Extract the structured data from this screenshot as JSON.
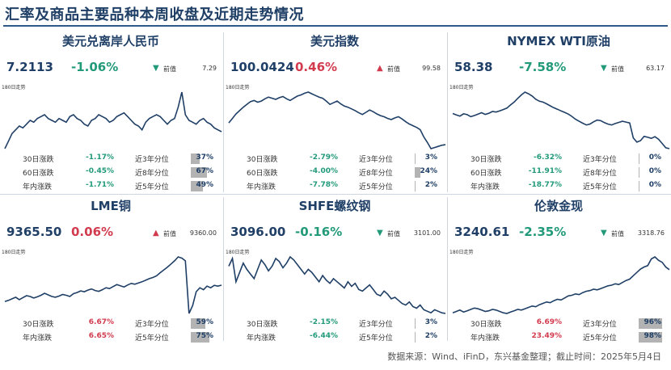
{
  "title": "汇率及商品主要品种本周收盘及近期走势情况",
  "source": "数据来源：Wind、iFinD，东兴基金整理；截止时间：2025年5月4日",
  "colors": {
    "down": "#229a7a",
    "up": "#d23b4e",
    "line": "#1f3f66",
    "bar": "#b3b3b3"
  },
  "panels": [
    {
      "name": "美元兑离岸人民币",
      "price": "7.2113",
      "change": "-1.06%",
      "direction": "down",
      "arrow": "▼",
      "prev_label": "前值",
      "prev_value": "7.29",
      "spark_label": "180日走势",
      "stats": [
        {
          "label": "30日涨跌",
          "value": "-1.17%",
          "dir": "down",
          "plabel": "近3年分位",
          "pct": "37%",
          "pct_value": 37
        },
        {
          "label": "60日涨跌",
          "value": "-0.45%",
          "dir": "down",
          "plabel": "近8年分位",
          "pct": "67%",
          "pct_value": 67
        },
        {
          "label": "年内涨跌",
          "value": "-1.71%",
          "dir": "down",
          "plabel": "近5年分位",
          "pct": "49%",
          "pct_value": 49
        }
      ]
    },
    {
      "name": "美元指数",
      "price": "100.0424",
      "change": "0.46%",
      "direction": "up",
      "arrow": "▲",
      "prev_label": "前值",
      "prev_value": "99.58",
      "spark_label": "180日走势",
      "stats": [
        {
          "label": "30日涨跌",
          "value": "-2.79%",
          "dir": "down",
          "plabel": "近3年分位",
          "pct": "3%",
          "pct_value": 3
        },
        {
          "label": "60日涨跌",
          "value": "-4.00%",
          "dir": "down",
          "plabel": "近8年分位",
          "pct": "24%",
          "pct_value": 24
        },
        {
          "label": "年内涨跌",
          "value": "-7.78%",
          "dir": "down",
          "plabel": "近5年分位",
          "pct": "2%",
          "pct_value": 2
        }
      ]
    },
    {
      "name": "NYMEX WTI原油",
      "price": "58.38",
      "change": "-7.58%",
      "direction": "down",
      "arrow": "▼",
      "prev_label": "前值",
      "prev_value": "63.17",
      "spark_label": "180日走势",
      "stats": [
        {
          "label": "30日涨跌",
          "value": "-6.32%",
          "dir": "down",
          "plabel": "近3年分位",
          "pct": "0%",
          "pct_value": 0
        },
        {
          "label": "60日涨跌",
          "value": "-11.91%",
          "dir": "down",
          "plabel": "近8年分位",
          "pct": "0%",
          "pct_value": 0
        },
        {
          "label": "年内涨跌",
          "value": "-18.77%",
          "dir": "down",
          "plabel": "近5年分位",
          "pct": "0%",
          "pct_value": 0
        }
      ]
    },
    {
      "name": "LME铜",
      "price": "9365.50",
      "change": "0.06%",
      "direction": "up",
      "arrow": "▲",
      "prev_label": "前值",
      "prev_value": "9360.00",
      "spark_label": "180日走势",
      "stats": [
        {
          "label": "30日涨跌",
          "value": "6.67%",
          "dir": "up",
          "plabel": "近3年分位",
          "pct": "59%",
          "pct_value": 59
        },
        {
          "label": "年内涨跌",
          "value": "6.65%",
          "dir": "up",
          "plabel": "近5年分位",
          "pct": "75%",
          "pct_value": 75
        }
      ]
    },
    {
      "name": "SHFE螺纹钢",
      "price": "3096.00",
      "change": "-0.16%",
      "direction": "down",
      "arrow": "▼",
      "prev_label": "前值",
      "prev_value": "3101.00",
      "spark_label": "180日走势",
      "stats": [
        {
          "label": "30日涨跌",
          "value": "-2.15%",
          "dir": "down",
          "plabel": "近3年分位",
          "pct": "3%",
          "pct_value": 3
        },
        {
          "label": "年内涨跌",
          "value": "-6.44%",
          "dir": "down",
          "plabel": "近5年分位",
          "pct": "2%",
          "pct_value": 2
        }
      ]
    },
    {
      "name": "伦敦金现",
      "price": "3240.61",
      "change": "-2.35%",
      "direction": "down",
      "arrow": "▼",
      "prev_label": "前值",
      "prev_value": "3318.76",
      "spark_label": "180日走势",
      "stats": [
        {
          "label": "30日涨跌",
          "value": "6.69%",
          "dir": "up",
          "plabel": "近3年分位",
          "pct": "96%",
          "pct_value": 96
        },
        {
          "label": "年内涨跌",
          "value": "23.49%",
          "dir": "up",
          "plabel": "近5年分位",
          "pct": "98%",
          "pct_value": 98
        }
      ]
    }
  ],
  "chart_data": [
    {
      "type": "line",
      "series": [
        {
          "values": [
            7.12,
            7.16,
            7.2,
            7.22,
            7.24,
            7.23,
            7.25,
            7.27,
            7.26,
            7.28,
            7.29,
            7.3,
            7.28,
            7.27,
            7.26,
            7.28,
            7.27,
            7.26,
            7.29,
            7.3,
            7.28,
            7.27,
            7.25,
            7.24,
            7.27,
            7.28,
            7.3,
            7.29,
            7.28,
            7.26,
            7.27,
            7.29,
            7.3,
            7.31,
            7.29,
            7.27,
            7.25,
            7.24,
            7.22,
            7.26,
            7.28,
            7.29,
            7.3,
            7.29,
            7.27,
            7.25,
            7.27,
            7.28,
            7.34,
            7.42,
            7.3,
            7.27,
            7.26,
            7.25,
            7.27,
            7.28,
            7.26,
            7.25,
            7.23,
            7.22,
            7.21
          ]
        }
      ]
    },
    {
      "type": "line",
      "series": [
        {
          "values": [
            104.0,
            104.8,
            105.6,
            106.2,
            106.8,
            107.3,
            107.8,
            108.0,
            107.7,
            107.9,
            108.3,
            108.6,
            108.4,
            108.2,
            108.5,
            108.7,
            108.3,
            108.0,
            108.4,
            108.8,
            109.0,
            109.3,
            109.5,
            109.2,
            108.9,
            108.6,
            108.4,
            107.9,
            107.3,
            107.6,
            107.9,
            107.4,
            107.0,
            106.8,
            106.5,
            106.2,
            105.8,
            105.5,
            105.9,
            106.3,
            106.0,
            105.6,
            105.3,
            105.1,
            104.8,
            104.6,
            104.9,
            105.1,
            104.7,
            104.2,
            103.8,
            103.5,
            103.2,
            102.8,
            101.5,
            100.5,
            99.4,
            99.6,
            99.8,
            100.0,
            100.1
          ]
        }
      ]
    },
    {
      "type": "line",
      "series": [
        {
          "values": [
            70.5,
            70.0,
            69.6,
            70.4,
            70.1,
            69.4,
            69.8,
            70.3,
            70.8,
            70.2,
            70.6,
            71.2,
            71.0,
            71.4,
            71.9,
            72.4,
            73.5,
            74.5,
            75.8,
            77.0,
            78.0,
            77.4,
            76.6,
            75.5,
            74.8,
            74.5,
            73.9,
            73.2,
            72.5,
            72.0,
            71.4,
            70.9,
            70.3,
            69.5,
            68.5,
            67.8,
            67.1,
            66.5,
            66.8,
            67.6,
            68.2,
            68.0,
            67.3,
            66.8,
            66.5,
            67.0,
            67.4,
            67.8,
            67.5,
            67.2,
            62.0,
            60.5,
            61.0,
            62.5,
            62.2,
            61.8,
            62.4,
            61.5,
            60.0,
            58.5,
            58.2
          ]
        }
      ]
    },
    {
      "type": "line",
      "series": [
        {
          "values": [
            8950,
            8980,
            9020,
            9060,
            9000,
            9050,
            9100,
            9080,
            9040,
            9070,
            9110,
            9160,
            9120,
            9080,
            9060,
            9090,
            9130,
            9110,
            9080,
            9150,
            9180,
            9220,
            9200,
            9240,
            9270,
            9230,
            9210,
            9250,
            9300,
            9280,
            9330,
            9380,
            9350,
            9320,
            9370,
            9410,
            9390,
            9420,
            9450,
            9490,
            9530,
            9560,
            9600,
            9680,
            9750,
            9820,
            9900,
            9980,
            10080,
            10050,
            9980,
            8650,
            8850,
            9200,
            9300,
            9250,
            9340,
            9300,
            9360,
            9340,
            9365
          ]
        }
      ]
    },
    {
      "type": "line",
      "series": [
        {
          "values": [
            3400,
            3450,
            3300,
            3360,
            3420,
            3380,
            3350,
            3320,
            3380,
            3440,
            3410,
            3370,
            3400,
            3450,
            3430,
            3390,
            3420,
            3460,
            3440,
            3410,
            3380,
            3350,
            3380,
            3360,
            3330,
            3300,
            3340,
            3310,
            3290,
            3320,
            3300,
            3280,
            3260,
            3300,
            3270,
            3290,
            3250,
            3240,
            3260,
            3280,
            3250,
            3220,
            3210,
            3240,
            3220,
            3190,
            3200,
            3180,
            3160,
            3150,
            3170,
            3140,
            3130,
            3150,
            3120,
            3110,
            3100,
            3120,
            3110,
            3100,
            3096
          ]
        }
      ]
    },
    {
      "type": "line",
      "series": [
        {
          "values": [
            2600,
            2620,
            2640,
            2610,
            2630,
            2650,
            2670,
            2660,
            2640,
            2620,
            2630,
            2650,
            2640,
            2620,
            2600,
            2590,
            2610,
            2630,
            2650,
            2640,
            2660,
            2680,
            2700,
            2690,
            2720,
            2740,
            2760,
            2750,
            2780,
            2800,
            2790,
            2820,
            2850,
            2860,
            2880,
            2870,
            2900,
            2920,
            2930,
            2950,
            2940,
            2960,
            2980,
            3000,
            3010,
            3030,
            3020,
            3050,
            3080,
            3100,
            3150,
            3200,
            3250,
            3280,
            3300,
            3400,
            3430,
            3380,
            3350,
            3280,
            3240
          ]
        }
      ]
    }
  ]
}
